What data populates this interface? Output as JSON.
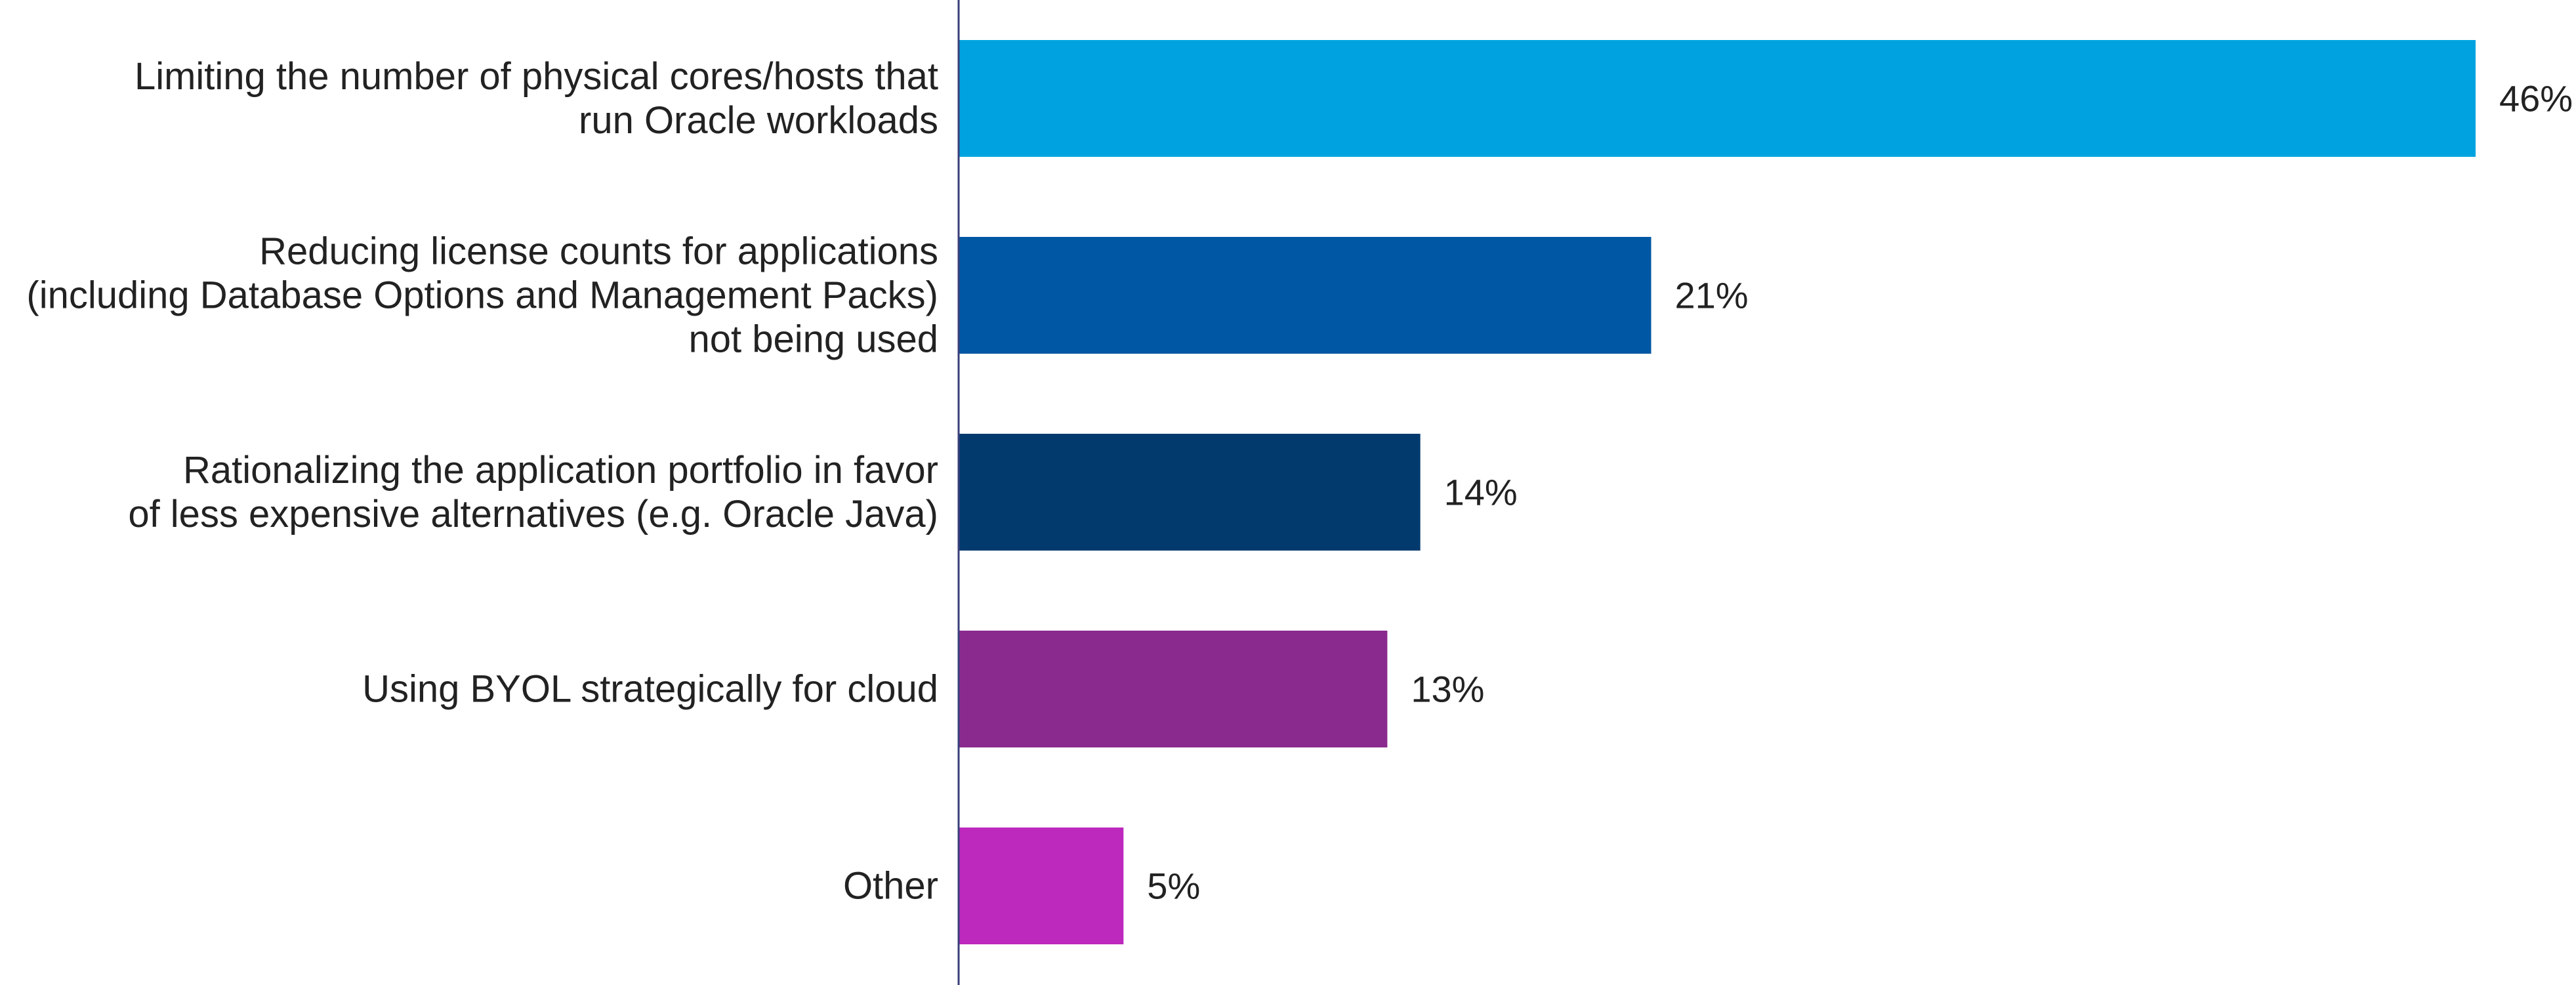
{
  "chart_data": {
    "type": "bar",
    "orientation": "horizontal",
    "categories": [
      [
        "Limiting the number of physical cores/hosts that",
        "run Oracle workloads"
      ],
      [
        "Reducing license counts for applications",
        "(including Database Options and Management Packs)",
        "not being used"
      ],
      [
        "Rationalizing the application portfolio in favor",
        "of less expensive alternatives (e.g. Oracle Java)"
      ],
      [
        "Using BYOL strategically for cloud"
      ],
      [
        "Other"
      ]
    ],
    "values": [
      46,
      21,
      14,
      13,
      5
    ],
    "value_labels": [
      "46%",
      "21%",
      "14%",
      "13%",
      "5%"
    ],
    "colors": [
      "#00A3E0",
      "#0057A3",
      "#023A6E",
      "#8B2A8E",
      "#BD28BD"
    ],
    "axis_color": "#3A3F7A",
    "title": "",
    "xlabel": "",
    "ylabel": "",
    "xlim": [
      0,
      46
    ],
    "grid": false,
    "legend": "none"
  }
}
